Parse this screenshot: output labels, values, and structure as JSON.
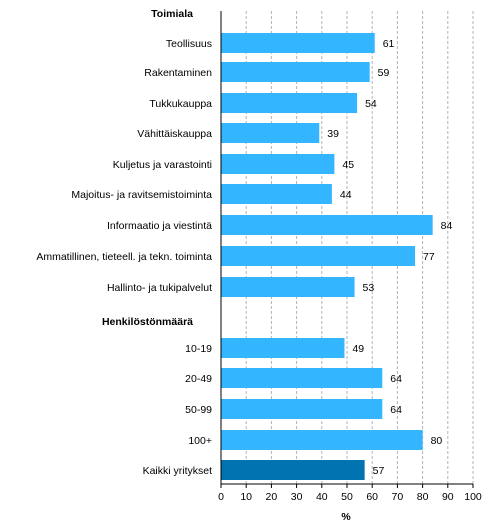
{
  "chart_data": {
    "type": "bar",
    "orientation": "horizontal",
    "sections": [
      {
        "title": "Toimiala",
        "rows": [
          {
            "label": "Teollisuus",
            "value": 61
          },
          {
            "label": "Rakentaminen",
            "value": 59
          },
          {
            "label": "Tukkukauppa",
            "value": 54
          },
          {
            "label": "Vähittäiskauppa",
            "value": 39
          },
          {
            "label": "Kuljetus ja varastointi",
            "value": 45
          },
          {
            "label": "Majoitus- ja ravitsemistoiminta",
            "value": 44
          },
          {
            "label": "Informaatio ja viestintä",
            "value": 84
          },
          {
            "label": "Ammatillinen, tieteell. ja tekn. toiminta",
            "value": 77
          },
          {
            "label": "Hallinto- ja tukipalvelut",
            "value": 53
          }
        ]
      },
      {
        "title": "Henkilöstönmäärä",
        "rows": [
          {
            "label": "10-19",
            "value": 49
          },
          {
            "label": "20-49",
            "value": 64
          },
          {
            "label": "50-99",
            "value": 64
          },
          {
            "label": "100+",
            "value": 80
          },
          {
            "label": "Kaikki yritykset",
            "value": 57,
            "highlight": true
          }
        ]
      }
    ],
    "xlabel": "%",
    "xlim": [
      0,
      100
    ],
    "xticks": [
      0,
      10,
      20,
      30,
      40,
      50,
      60,
      70,
      80,
      90,
      100
    ],
    "grid": "vertical dashed",
    "colors": {
      "bar": "#33b5ff",
      "highlight": "#0073b0",
      "grid": "#b3b3b3",
      "axis": "#000000"
    }
  }
}
